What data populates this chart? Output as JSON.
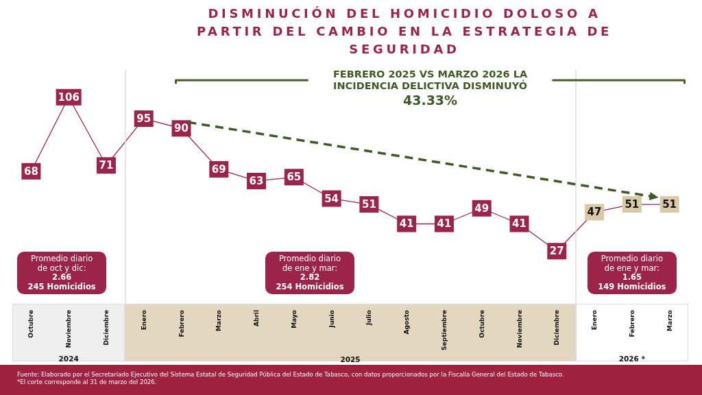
{
  "chart_data": [
    {
      "type": "line",
      "categories": [
        "Octubre",
        "Noviembre",
        "Diciembre"
      ],
      "values": [
        68,
        106,
        71
      ],
      "color": "#9d2449",
      "colors": [
        "#9d2449",
        "#9d2449",
        "#9d2449"
      ],
      "marker": "square",
      "data_labels": true,
      "tick_labels": "x",
      "xlabel": "2024",
      "annotations": [
        "Promedio diario de oct y dic:\n2.66\n245 Homicidios"
      ]
    },
    {
      "type": "line",
      "title": "DISMINUCIÓN DEL HOMICIDIO DOLOSO A PARTIR DEL CAMBIO EN LA ESTRATEGIA DE SEGURIDAD",
      "categories": [
        "Enero",
        "Febrero",
        "Marzo",
        "Abril",
        "Mayo",
        "Junio",
        "Julio",
        "Agosto",
        "Septiembre",
        "Octubre",
        "Noviembre",
        "Diciembre"
      ],
      "values": [
        95,
        90,
        69,
        63,
        65,
        54,
        51,
        41,
        41,
        49,
        41,
        27
      ],
      "color": "#9d2449",
      "colors": [
        "#9d2449",
        "#9d2449",
        "#9d2449",
        "#9d2449",
        "#9d2449",
        "#9d2449",
        "#9d2449",
        "#9d2449",
        "#9d2449",
        "#9d2449",
        "#9d2449",
        "#9d2449"
      ],
      "marker": "square",
      "data_labels": true,
      "tick_labels": "x",
      "xlabel": "2025",
      "annotations": [
        "FEBRERO 2025 VS MARZO 2026 LA INCIDENCIA DELICTIVA DISMINUYÓ",
        "43.33%",
        "Promedio diario de ene y mar:\n2.82\n254 Homicidios",
        "Fuente: Elaborado por el Secretariado Ejecutivo del Sistema Estatal de Seguridad Pública del Estado de Tabasco, con datos proporcionados por la Fiscalía General del Estado de Tabasco.",
        "*El corte corresponde al 31 de marzo del 2026."
      ]
    },
    {
      "type": "line",
      "categories": [
        "Enero",
        "Febrero",
        "Marzo"
      ],
      "values": [
        47,
        51,
        51
      ],
      "color": "#9d2449",
      "colors": [
        "#dac9a6",
        "#dac9a6",
        "#dac9a6"
      ],
      "marker": "square",
      "data_labels": true,
      "tick_labels": "x",
      "xlabel": "2026 *",
      "annotations": [
        "Promedio diario de ene y mar:\n1.65\n149 Homicidios"
      ]
    }
  ]
}
